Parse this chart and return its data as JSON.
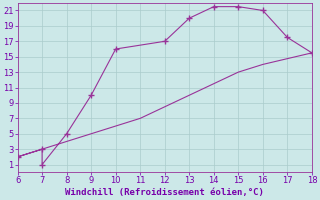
{
  "x": [
    6,
    7,
    7,
    8,
    9,
    10,
    12,
    13,
    14,
    15,
    16,
    17,
    18,
    16,
    15,
    13,
    11,
    9,
    8,
    7,
    6
  ],
  "y": [
    2,
    3,
    1,
    5,
    10,
    16,
    17,
    20,
    21.5,
    21.5,
    21,
    17.5,
    15.5,
    14,
    13,
    10,
    7,
    5,
    4,
    3,
    2
  ],
  "line_color": "#993399",
  "marker": "+",
  "marker_indices": [
    0,
    1,
    2,
    3,
    4,
    5,
    6,
    7,
    8,
    9,
    10,
    11,
    12
  ],
  "marker_size": 4,
  "marker_color": "#993399",
  "bg_color": "#cce8e8",
  "grid_color": "#aacccc",
  "xlabel": "Windchill (Refroidissement éolien,°C)",
  "xlim": [
    6,
    18
  ],
  "ylim": [
    0,
    22
  ],
  "xticks": [
    6,
    7,
    8,
    9,
    10,
    11,
    12,
    13,
    14,
    15,
    16,
    17,
    18
  ],
  "yticks": [
    1,
    3,
    5,
    7,
    9,
    11,
    13,
    15,
    17,
    19,
    21
  ],
  "xlabel_color": "#7700aa",
  "tick_color": "#7700aa",
  "spine_color": "#993399",
  "tick_fontsize": 6,
  "xlabel_fontsize": 6.5
}
